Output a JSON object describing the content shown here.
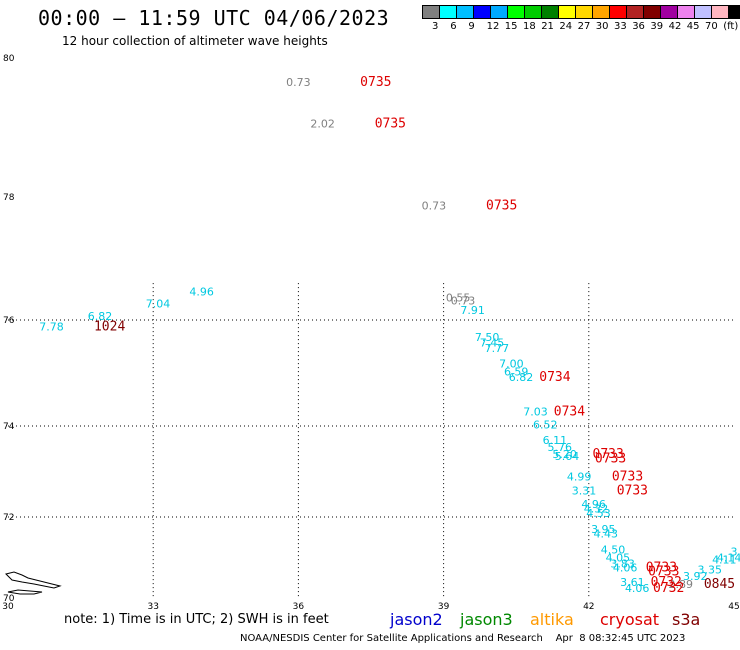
{
  "header": {
    "title": "00:00 – 11:59 UTC 04/06/2023",
    "subtitle": "12 hour collection of altimeter wave heights"
  },
  "legend": {
    "unit": "(ft)",
    "colors": [
      "#808080",
      "#00ffff",
      "#00bfff",
      "#0000ff",
      "#00aaff",
      "#00ff00",
      "#00cc00",
      "#008000",
      "#ffff00",
      "#ffd700",
      "#ffa500",
      "#ff0000",
      "#b22222",
      "#800000",
      "#a000a0",
      "#ee82ee",
      "#c0c0ff",
      "#ffb6c1",
      "#000000"
    ],
    "labels": [
      "3",
      "6",
      "9",
      "12",
      "15",
      "18",
      "21",
      "24",
      "27",
      "30",
      "33",
      "36",
      "39",
      "42",
      "45",
      "70"
    ]
  },
  "footer": {
    "note": "note: 1) Time is in UTC; 2) SWH is in feet",
    "satellites": [
      {
        "name": "jason2",
        "color": "#0000cc"
      },
      {
        "name": "jason3",
        "color": "#008800"
      },
      {
        "name": "altika",
        "color": "#ff9900"
      },
      {
        "name": "cryosat",
        "color": "#dd0000"
      },
      {
        "name": "s3a",
        "color": "#800000"
      }
    ],
    "credit": "NOAA/NESDIS Center for Satellite Applications and Research    Apr  8 08:32:45 UTC 2023"
  },
  "chart_data": {
    "type": "scatter",
    "title": "00:00 – 11:59 UTC 04/06/2023",
    "subtitle": "12 hour collection of altimeter wave heights",
    "xlim": [
      30,
      45
    ],
    "ylim": [
      70,
      80
    ],
    "x_ticks": [
      30,
      33,
      36,
      39,
      42,
      45
    ],
    "y_ticks": [
      70,
      72,
      74,
      76,
      78,
      80
    ],
    "grid": true,
    "points": [
      {
        "lon": 36.0,
        "lat": 79.6,
        "label": "0.73",
        "color": "#808080"
      },
      {
        "lon": 38.8,
        "lat": 77.8,
        "label": "0.73",
        "color": "#808080"
      },
      {
        "lon": 36.5,
        "lat": 79.0,
        "label": "2.02",
        "color": "#808080"
      },
      {
        "lon": 34.0,
        "lat": 76.4,
        "label": "4.96",
        "color": "#00c8e0"
      },
      {
        "lon": 33.1,
        "lat": 76.2,
        "label": "7.04",
        "color": "#00c8e0"
      },
      {
        "lon": 31.9,
        "lat": 76.0,
        "label": "6.82",
        "color": "#00c8e0"
      },
      {
        "lon": 30.9,
        "lat": 75.8,
        "label": "7.78",
        "color": "#00c8e0"
      },
      {
        "lon": 39.3,
        "lat": 76.3,
        "label": "0.55",
        "color": "#808080"
      },
      {
        "lon": 39.4,
        "lat": 76.25,
        "label": "0.73",
        "color": "#808080"
      },
      {
        "lon": 39.6,
        "lat": 76.1,
        "label": "7.91",
        "color": "#00c8e0"
      },
      {
        "lon": 39.9,
        "lat": 75.6,
        "label": "7.50",
        "color": "#00c8e0"
      },
      {
        "lon": 40.0,
        "lat": 75.5,
        "label": "7.45",
        "color": "#00c8e0"
      },
      {
        "lon": 40.1,
        "lat": 75.4,
        "label": "7.77",
        "color": "#00c8e0"
      },
      {
        "lon": 40.4,
        "lat": 75.1,
        "label": "7.00",
        "color": "#00c8e0"
      },
      {
        "lon": 40.5,
        "lat": 74.95,
        "label": "6.59",
        "color": "#00c8e0"
      },
      {
        "lon": 40.6,
        "lat": 74.85,
        "label": "6.82",
        "color": "#00c8e0"
      },
      {
        "lon": 40.9,
        "lat": 74.2,
        "label": "7.03",
        "color": "#00c8e0"
      },
      {
        "lon": 41.1,
        "lat": 73.95,
        "label": "6.52",
        "color": "#00c8e0"
      },
      {
        "lon": 41.3,
        "lat": 73.6,
        "label": "6.11",
        "color": "#00c8e0"
      },
      {
        "lon": 41.4,
        "lat": 73.45,
        "label": "5.76",
        "color": "#00c8e0"
      },
      {
        "lon": 41.5,
        "lat": 73.3,
        "label": "5.20",
        "color": "#00c8e0"
      },
      {
        "lon": 41.55,
        "lat": 73.25,
        "label": "5.64",
        "color": "#00c8e0"
      },
      {
        "lon": 41.8,
        "lat": 72.8,
        "label": "4.99",
        "color": "#00c8e0"
      },
      {
        "lon": 41.9,
        "lat": 72.5,
        "label": "3.31",
        "color": "#00c8e0"
      },
      {
        "lon": 42.1,
        "lat": 72.2,
        "label": "4.96",
        "color": "#00c8e0"
      },
      {
        "lon": 42.15,
        "lat": 72.1,
        "label": "4.32",
        "color": "#00c8e0"
      },
      {
        "lon": 42.2,
        "lat": 72.0,
        "label": "4.53",
        "color": "#00c8e0"
      },
      {
        "lon": 42.3,
        "lat": 71.6,
        "label": "3.95",
        "color": "#00c8e0"
      },
      {
        "lon": 42.35,
        "lat": 71.5,
        "label": "4.43",
        "color": "#00c8e0"
      },
      {
        "lon": 42.5,
        "lat": 71.1,
        "label": "4.50",
        "color": "#00c8e0"
      },
      {
        "lon": 42.6,
        "lat": 70.9,
        "label": "4.05",
        "color": "#00c8e0"
      },
      {
        "lon": 42.7,
        "lat": 70.75,
        "label": "3.83",
        "color": "#00c8e0"
      },
      {
        "lon": 42.75,
        "lat": 70.65,
        "label": "4.06",
        "color": "#00c8e0"
      },
      {
        "lon": 42.9,
        "lat": 70.3,
        "label": "3.61",
        "color": "#00c8e0"
      },
      {
        "lon": 43.0,
        "lat": 70.15,
        "label": "4.06",
        "color": "#00c8e0"
      },
      {
        "lon": 43.9,
        "lat": 70.25,
        "label": "2.89",
        "color": "#808080"
      },
      {
        "lon": 44.2,
        "lat": 70.45,
        "label": "3.92",
        "color": "#00c8e0"
      },
      {
        "lon": 44.5,
        "lat": 70.6,
        "label": "3.35",
        "color": "#00c8e0"
      },
      {
        "lon": 44.8,
        "lat": 70.85,
        "label": "4.11",
        "color": "#00c8e0"
      },
      {
        "lon": 44.9,
        "lat": 70.9,
        "label": "4.14",
        "color": "#00c8e0"
      },
      {
        "lon": 45.0,
        "lat": 71.05,
        "label": "3",
        "color": "#00c8e0"
      }
    ],
    "time_labels": [
      {
        "lon": 37.6,
        "lat": 79.6,
        "label": "0735",
        "color": "#dd0000"
      },
      {
        "lon": 37.9,
        "lat": 79.0,
        "label": "0735",
        "color": "#dd0000"
      },
      {
        "lon": 40.2,
        "lat": 77.8,
        "label": "0735",
        "color": "#dd0000"
      },
      {
        "lon": 32.1,
        "lat": 75.8,
        "label": "1024",
        "color": "#800000"
      },
      {
        "lon": 41.3,
        "lat": 74.85,
        "label": "0734",
        "color": "#dd0000"
      },
      {
        "lon": 41.6,
        "lat": 74.2,
        "label": "0734",
        "color": "#dd0000"
      },
      {
        "lon": 42.4,
        "lat": 73.3,
        "label": "0733",
        "color": "#dd0000"
      },
      {
        "lon": 42.45,
        "lat": 73.2,
        "label": "0733",
        "color": "#dd0000"
      },
      {
        "lon": 42.8,
        "lat": 72.8,
        "label": "0733",
        "color": "#dd0000"
      },
      {
        "lon": 42.9,
        "lat": 72.5,
        "label": "0733",
        "color": "#dd0000"
      },
      {
        "lon": 43.5,
        "lat": 70.65,
        "label": "0733",
        "color": "#dd0000"
      },
      {
        "lon": 43.55,
        "lat": 70.55,
        "label": "0733",
        "color": "#dd0000"
      },
      {
        "lon": 43.6,
        "lat": 70.3,
        "label": "0732",
        "color": "#dd0000"
      },
      {
        "lon": 43.65,
        "lat": 70.15,
        "label": "0732",
        "color": "#dd0000"
      },
      {
        "lon": 44.7,
        "lat": 70.25,
        "label": "0845",
        "color": "#800000"
      }
    ]
  }
}
